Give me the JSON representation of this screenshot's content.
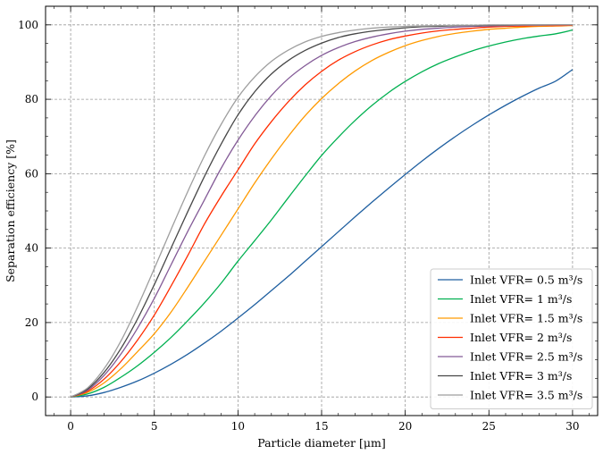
{
  "chart_data": {
    "type": "line",
    "title": "",
    "xlabel": "Particle diameter [μm]",
    "ylabel": "Separation efficiency [%]",
    "xlim": [
      -1.5,
      31.5
    ],
    "ylim": [
      -5,
      105
    ],
    "xticks": [
      0,
      5,
      10,
      15,
      20,
      25,
      30
    ],
    "yticks": [
      0,
      20,
      40,
      60,
      80,
      100
    ],
    "xtick_labels": [
      "0",
      "5",
      "10",
      "15",
      "20",
      "25",
      "30"
    ],
    "ytick_labels": [
      "0",
      "20",
      "40",
      "60",
      "80",
      "100"
    ],
    "grid": true,
    "legend_position": "lower-right",
    "x": [
      0,
      1,
      2,
      3,
      4,
      5,
      6,
      7,
      8,
      9,
      10,
      11,
      12,
      13,
      14,
      15,
      16,
      17,
      18,
      19,
      20,
      21,
      22,
      23,
      24,
      25,
      26,
      27,
      28,
      29,
      30
    ],
    "series": [
      {
        "name": "Inlet VFR= 0.5 m³/s",
        "color": "#1f5fa0",
        "values": [
          0,
          0.3,
          1.2,
          2.6,
          4.3,
          6.4,
          8.8,
          11.5,
          14.5,
          17.7,
          21.2,
          24.8,
          28.6,
          32.4,
          36.4,
          40.4,
          44.4,
          48.4,
          52.3,
          56.1,
          59.8,
          63.4,
          66.8,
          70.0,
          73.0,
          75.8,
          78.4,
          80.8,
          83.0,
          84.9,
          88.0
        ]
      },
      {
        "name": "Inlet VFR= 1 m³/s",
        "color": "#00b050",
        "values": [
          0,
          0.8,
          2.6,
          5.3,
          8.4,
          12.0,
          16.0,
          20.5,
          25.3,
          30.6,
          36.5,
          42.0,
          47.6,
          53.5,
          59.3,
          64.9,
          69.8,
          74.3,
          78.3,
          81.8,
          84.8,
          87.4,
          89.6,
          91.4,
          93.0,
          94.3,
          95.4,
          96.3,
          97.0,
          97.6,
          98.6
        ]
      },
      {
        "name": "Inlet VFR= 1.5 m³/s",
        "color": "#ff9a00",
        "values": [
          0,
          1.2,
          3.8,
          7.6,
          12.2,
          17.0,
          22.8,
          29.5,
          36.5,
          43.5,
          50.5,
          57.5,
          64.0,
          70.0,
          75.5,
          80.2,
          84.2,
          87.6,
          90.4,
          92.6,
          94.4,
          95.8,
          96.9,
          97.7,
          98.3,
          98.8,
          99.1,
          99.4,
          99.6,
          99.7,
          99.8
        ]
      },
      {
        "name": "Inlet VFR= 2 m³/s",
        "color": "#ff2c00",
        "values": [
          0,
          1.5,
          4.8,
          9.5,
          15.3,
          22.0,
          29.8,
          38.0,
          46.5,
          54.0,
          61.0,
          68.0,
          74.0,
          79.3,
          83.8,
          87.5,
          90.5,
          92.8,
          94.6,
          96.0,
          97.0,
          97.8,
          98.4,
          98.8,
          99.1,
          99.4,
          99.6,
          99.7,
          99.8,
          99.8,
          99.9
        ]
      },
      {
        "name": "Inlet VFR= 2.5 m³/s",
        "color": "#845b97",
        "values": [
          0,
          1.8,
          5.8,
          11.5,
          18.5,
          26.5,
          35.5,
          44.5,
          53.0,
          61.5,
          69.0,
          75.5,
          81.0,
          85.5,
          89.0,
          91.8,
          93.9,
          95.5,
          96.7,
          97.6,
          98.3,
          98.8,
          99.1,
          99.4,
          99.6,
          99.7,
          99.8,
          99.9,
          99.9,
          100,
          100
        ]
      },
      {
        "name": "Inlet VFR= 3 m³/s",
        "color": "#474747",
        "values": [
          0,
          2.1,
          6.6,
          13.0,
          21.0,
          30.2,
          40.0,
          49.8,
          59.3,
          68.0,
          75.8,
          82.0,
          86.8,
          90.4,
          93.1,
          95.1,
          96.6,
          97.6,
          98.3,
          98.8,
          99.2,
          99.5,
          99.6,
          99.8,
          99.8,
          99.9,
          99.9,
          100,
          100,
          100,
          100
        ]
      },
      {
        "name": "Inlet VFR= 3.5 m³/s",
        "color": "#9e9e9e",
        "values": [
          0,
          2.4,
          7.6,
          15.0,
          24.3,
          34.5,
          45.0,
          55.2,
          64.8,
          73.3,
          80.5,
          86.0,
          90.2,
          93.2,
          95.4,
          96.9,
          97.9,
          98.6,
          99.1,
          99.4,
          99.6,
          99.7,
          99.8,
          99.9,
          99.9,
          100,
          100,
          100,
          100,
          100,
          100
        ]
      }
    ]
  }
}
